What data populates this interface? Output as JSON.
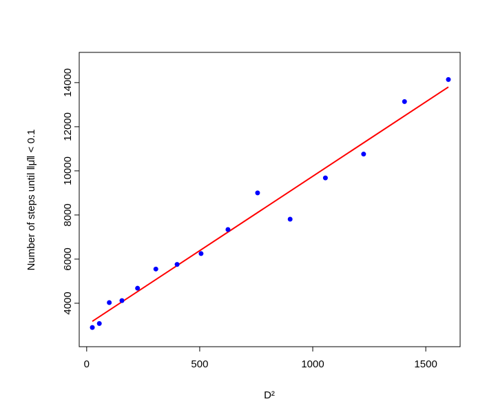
{
  "chart_data": {
    "type": "scatter",
    "x_label": "D²",
    "y_label": "Number of steps until ‖μ̂‖ < 0.1",
    "x": [
      25,
      56,
      100,
      156,
      225,
      306,
      400,
      506,
      625,
      756,
      900,
      1056,
      1225,
      1406,
      1600
    ],
    "values": [
      2900,
      3080,
      4030,
      4120,
      4680,
      5550,
      5760,
      6250,
      7340,
      9000,
      7810,
      9680,
      10760,
      13140,
      14140
    ],
    "color": "#0000ff",
    "fit": {
      "x": [
        25,
        1600
      ],
      "y": [
        3180,
        13800
      ],
      "color": "#ff0000"
    },
    "xlim": [
      -33,
      1652
    ],
    "ylim": [
      2030,
      15370
    ],
    "xticks": [
      0,
      500,
      1000,
      1500
    ],
    "yticks": [
      4000,
      6000,
      8000,
      10000,
      12000,
      14000
    ]
  }
}
